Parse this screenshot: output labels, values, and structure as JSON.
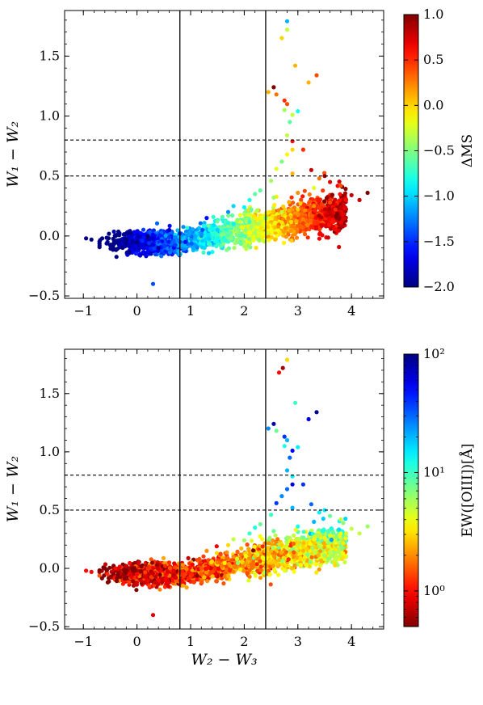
{
  "chart_data": [
    {
      "type": "scatter",
      "xlabel": "",
      "ylabel": "W₁ − W₂",
      "xlim": [
        -1.35,
        4.6
      ],
      "ylim": [
        -0.52,
        1.88
      ],
      "x_ticks": [
        -1,
        0,
        1,
        2,
        3,
        4
      ],
      "y_ticks": [
        -0.5,
        0.0,
        0.5,
        1.0,
        1.5
      ],
      "x_tick_labels": [
        "−1",
        "0",
        "1",
        "2",
        "3",
        "4"
      ],
      "y_tick_labels": [
        "−0.5",
        "0.0",
        "0.5",
        "1.0",
        "1.5"
      ],
      "vertical_lines": [
        0.8,
        2.4
      ],
      "horizontal_dashed_lines": [
        0.5,
        0.8
      ],
      "colorbar": {
        "label": "ΔMS",
        "scale": "linear",
        "range": [
          -2.0,
          1.0
        ],
        "colormap": "jet",
        "ticks": [
          -2.0,
          -1.5,
          -1.0,
          -0.5,
          0.0,
          0.5,
          1.0
        ],
        "tick_labels": [
          "−2.0",
          "−1.5",
          "−1.0",
          "−0.5",
          "0.0",
          "0.5",
          "1.0"
        ]
      },
      "points": [
        [
          -0.95,
          -0.02,
          -2.0
        ],
        [
          -0.85,
          -0.03,
          -2.0
        ],
        [
          -0.55,
          -0.05,
          -2.0
        ],
        [
          -0.4,
          0.0,
          -2.0
        ],
        [
          0.3,
          -0.4,
          -1.4
        ],
        [
          0.0,
          -0.05,
          -2.0
        ],
        [
          0.2,
          0.0,
          -2.0
        ],
        [
          0.4,
          -0.1,
          -1.9
        ],
        [
          0.6,
          0.05,
          -1.8
        ],
        [
          0.9,
          -0.05,
          -1.6
        ],
        [
          1.2,
          0.0,
          -1.2
        ],
        [
          1.5,
          0.05,
          -1.0
        ],
        [
          1.8,
          0.1,
          -0.9
        ],
        [
          2.1,
          0.12,
          -0.7
        ],
        [
          2.4,
          0.15,
          -0.5
        ],
        [
          2.7,
          0.2,
          -0.3
        ],
        [
          3.0,
          0.22,
          0.0
        ],
        [
          3.3,
          0.25,
          0.2
        ],
        [
          3.6,
          0.28,
          0.4
        ],
        [
          3.9,
          0.3,
          0.6
        ],
        [
          4.0,
          0.34,
          0.8
        ],
        [
          4.3,
          0.36,
          1.0
        ],
        [
          4.15,
          0.3,
          0.8
        ],
        [
          3.7,
          0.22,
          0.5
        ],
        [
          2.3,
          0.38,
          -0.6
        ],
        [
          2.5,
          0.46,
          -0.4
        ],
        [
          2.9,
          0.52,
          0.1
        ],
        [
          3.4,
          0.48,
          0.3
        ],
        [
          2.6,
          0.56,
          -0.2
        ],
        [
          2.7,
          0.62,
          -0.5
        ],
        [
          2.8,
          0.68,
          -0.1
        ],
        [
          2.9,
          0.72,
          0.0
        ],
        [
          3.1,
          0.72,
          0.5
        ],
        [
          2.9,
          0.79,
          0.6
        ],
        [
          2.8,
          0.84,
          -0.3
        ],
        [
          2.85,
          0.95,
          -0.6
        ],
        [
          2.9,
          1.01,
          -0.3
        ],
        [
          3.0,
          1.04,
          -0.8
        ],
        [
          2.75,
          1.05,
          -0.4
        ],
        [
          2.6,
          1.18,
          0.3
        ],
        [
          2.45,
          1.2,
          0.1
        ],
        [
          2.55,
          1.24,
          1.0
        ],
        [
          2.75,
          1.13,
          0.5
        ],
        [
          2.8,
          1.1,
          0.4
        ],
        [
          3.2,
          1.28,
          0.1
        ],
        [
          3.35,
          1.34,
          0.4
        ],
        [
          2.95,
          1.42,
          0.1
        ],
        [
          2.7,
          1.65,
          0.0
        ],
        [
          2.8,
          1.72,
          -0.3
        ],
        [
          2.8,
          1.79,
          -1.1
        ],
        [
          3.25,
          0.55,
          0.8
        ],
        [
          3.5,
          0.5,
          0.9
        ],
        [
          3.6,
          0.45,
          0.7
        ],
        [
          3.8,
          0.42,
          0.4
        ],
        [
          1.8,
          0.25,
          -1.0
        ],
        [
          2.1,
          0.3,
          -0.8
        ],
        [
          2.2,
          0.35,
          -0.6
        ],
        [
          1.7,
          0.2,
          -1.2
        ],
        [
          1.3,
          0.15,
          -1.6
        ],
        [
          3.3,
          0.4,
          -0.2
        ],
        [
          2.0,
          0.24,
          -0.9
        ],
        [
          2.55,
          0.32,
          -0.4
        ],
        [
          3.0,
          0.36,
          0.2
        ]
      ]
    },
    {
      "type": "scatter",
      "xlabel": "W₂ − W₃",
      "ylabel": "W₁ − W₂",
      "xlim": [
        -1.35,
        4.6
      ],
      "ylim": [
        -0.52,
        1.88
      ],
      "x_ticks": [
        -1,
        0,
        1,
        2,
        3,
        4
      ],
      "y_ticks": [
        -0.5,
        0.0,
        0.5,
        1.0,
        1.5
      ],
      "x_tick_labels": [
        "−1",
        "0",
        "1",
        "2",
        "3",
        "4"
      ],
      "y_tick_labels": [
        "−0.5",
        "0.0",
        "0.5",
        "1.0",
        "1.5"
      ],
      "vertical_lines": [
        0.8,
        2.4
      ],
      "horizontal_dashed_lines": [
        0.5,
        0.8
      ],
      "colorbar": {
        "label": "EW([OIII])[Å]",
        "scale": "log",
        "range": [
          0.5,
          100
        ],
        "colormap": "jet_r",
        "ticks": [
          1,
          10,
          100
        ],
        "tick_labels": [
          "10⁰",
          "10¹",
          "10²"
        ]
      },
      "points": [
        [
          -0.95,
          -0.02,
          1.0
        ],
        [
          -0.85,
          -0.03,
          1.0
        ],
        [
          -0.55,
          -0.05,
          1.2
        ],
        [
          -0.4,
          0.0,
          1.0
        ],
        [
          0.3,
          -0.4,
          0.8
        ],
        [
          0.0,
          -0.05,
          1.0
        ],
        [
          0.2,
          0.0,
          1.2
        ],
        [
          0.4,
          -0.1,
          1.0
        ],
        [
          0.6,
          0.05,
          1.2
        ],
        [
          0.9,
          -0.05,
          1.3
        ],
        [
          1.2,
          0.0,
          1.5
        ],
        [
          1.5,
          0.05,
          1.8
        ],
        [
          1.8,
          0.1,
          2.0
        ],
        [
          2.1,
          0.12,
          2.2
        ],
        [
          2.4,
          0.15,
          2.5
        ],
        [
          2.7,
          0.2,
          2.8
        ],
        [
          3.0,
          0.22,
          3.0
        ],
        [
          3.3,
          0.25,
          3.5
        ],
        [
          3.6,
          0.28,
          4.0
        ],
        [
          3.9,
          0.3,
          4.5
        ],
        [
          4.0,
          0.34,
          5.0
        ],
        [
          4.3,
          0.36,
          6.0
        ],
        [
          4.15,
          0.3,
          5.0
        ],
        [
          3.7,
          0.22,
          4.0
        ],
        [
          2.3,
          0.38,
          8.0
        ],
        [
          2.5,
          0.46,
          10.0
        ],
        [
          2.9,
          0.52,
          20.0
        ],
        [
          3.4,
          0.48,
          15.0
        ],
        [
          2.6,
          0.56,
          40.0
        ],
        [
          2.7,
          0.62,
          25.0
        ],
        [
          2.8,
          0.68,
          30.0
        ],
        [
          2.9,
          0.72,
          60.0
        ],
        [
          3.1,
          0.72,
          40.0
        ],
        [
          2.9,
          0.79,
          15.0
        ],
        [
          2.8,
          0.84,
          20.0
        ],
        [
          2.85,
          0.95,
          30.0
        ],
        [
          2.9,
          1.01,
          50.0
        ],
        [
          3.0,
          1.04,
          15.0
        ],
        [
          2.75,
          1.05,
          12.0
        ],
        [
          2.6,
          1.18,
          8.0
        ],
        [
          2.45,
          1.2,
          25.0
        ],
        [
          2.55,
          1.24,
          80.0
        ],
        [
          2.75,
          1.13,
          40.0
        ],
        [
          2.8,
          1.1,
          20.0
        ],
        [
          3.2,
          1.28,
          60.0
        ],
        [
          3.35,
          1.34,
          90.0
        ],
        [
          2.95,
          1.42,
          10.0
        ],
        [
          2.65,
          1.68,
          1.0
        ],
        [
          2.72,
          1.72,
          0.6
        ],
        [
          2.8,
          1.79,
          3.0
        ],
        [
          3.25,
          0.55,
          30.0
        ],
        [
          3.5,
          0.5,
          15.0
        ],
        [
          3.6,
          0.45,
          8.0
        ],
        [
          3.8,
          0.42,
          5.0
        ],
        [
          1.8,
          0.25,
          5.0
        ],
        [
          2.1,
          0.3,
          10.0
        ],
        [
          2.2,
          0.35,
          12.0
        ],
        [
          1.7,
          0.2,
          3.0
        ],
        [
          1.3,
          0.15,
          2.0
        ],
        [
          3.3,
          0.4,
          20.0
        ],
        [
          2.0,
          0.24,
          6.0
        ],
        [
          2.55,
          0.32,
          8.0
        ],
        [
          3.0,
          0.36,
          12.0
        ]
      ]
    }
  ]
}
